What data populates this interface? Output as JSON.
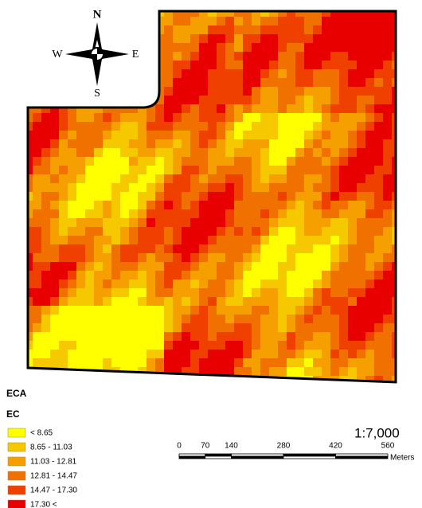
{
  "compass": {
    "north": "N",
    "south": "S",
    "east": "E",
    "west": "W"
  },
  "legend": {
    "title": "ECA",
    "subtitle": "EC",
    "classes": [
      {
        "label": "< 8.65",
        "color": "#ffff00"
      },
      {
        "label": "8.65 - 11.03",
        "color": "#f5c800"
      },
      {
        "label": "11.03 - 12.81",
        "color": "#f5a000"
      },
      {
        "label": "12.81 - 14.47",
        "color": "#f07000"
      },
      {
        "label": "14.47 - 17.30",
        "color": "#f04000"
      },
      {
        "label": "17.30 <",
        "color": "#e80000"
      }
    ]
  },
  "scale": {
    "ratio": "1:7,000",
    "ticks": [
      0,
      70,
      140,
      280,
      420,
      560
    ],
    "unit": "Meters"
  }
}
